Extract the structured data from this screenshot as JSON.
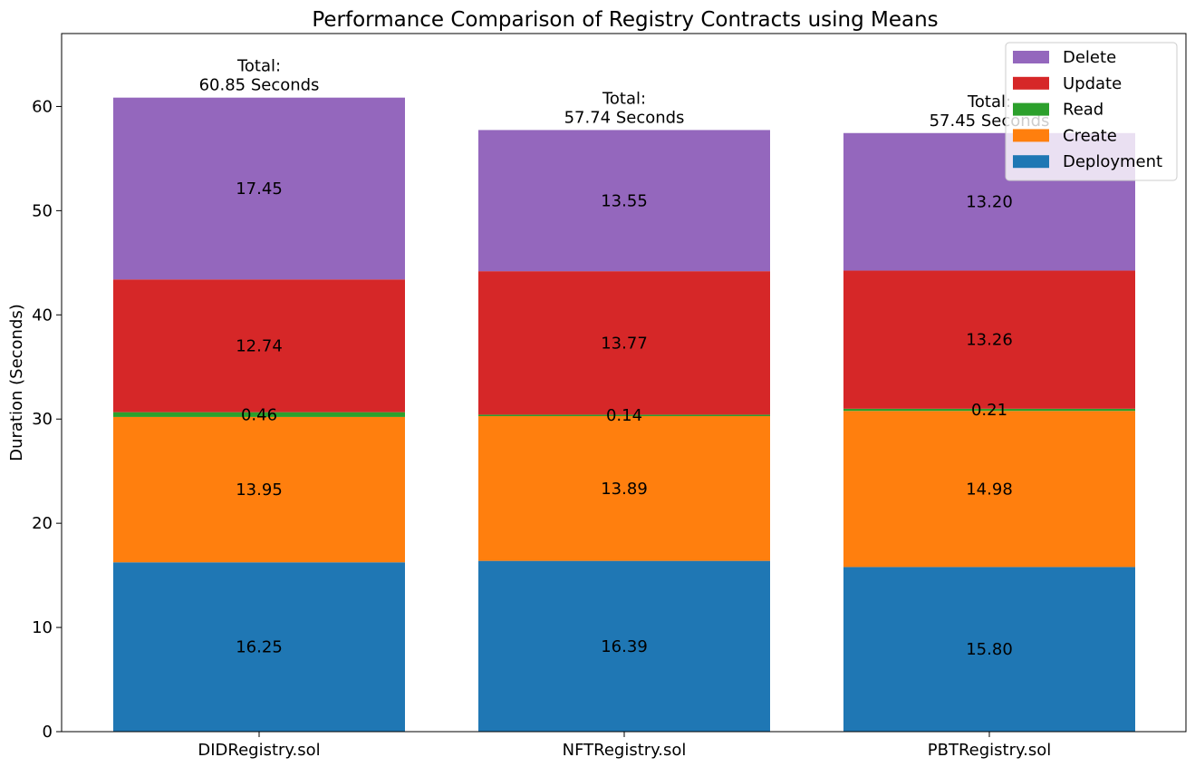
{
  "chart_data": {
    "type": "bar",
    "stacked": true,
    "title": "Performance Comparison of Registry Contracts using Means",
    "xlabel": "",
    "ylabel": "Duration (Seconds)",
    "ylim": [
      0,
      67
    ],
    "yticks": [
      0,
      10,
      20,
      30,
      40,
      50,
      60
    ],
    "grid": false,
    "legend_position": "top-right",
    "categories": [
      "DIDRegistry.sol",
      "NFTRegistry.sol",
      "PBTRegistry.sol"
    ],
    "series": [
      {
        "name": "Deployment",
        "color": "#1f77b4",
        "values": [
          16.25,
          16.39,
          15.8
        ],
        "labels": [
          "16.25",
          "16.39",
          "15.80"
        ]
      },
      {
        "name": "Create",
        "color": "#ff7f0e",
        "values": [
          13.95,
          13.89,
          14.98
        ],
        "labels": [
          "13.95",
          "13.89",
          "14.98"
        ]
      },
      {
        "name": "Read",
        "color": "#2ca02c",
        "values": [
          0.46,
          0.14,
          0.21
        ],
        "labels": [
          "0.46",
          "0.14",
          "0.21"
        ]
      },
      {
        "name": "Update",
        "color": "#d62728",
        "values": [
          12.74,
          13.77,
          13.26
        ],
        "labels": [
          "12.74",
          "13.77",
          "13.26"
        ]
      },
      {
        "name": "Delete",
        "color": "#9467bd",
        "values": [
          17.45,
          13.55,
          13.2
        ],
        "labels": [
          "17.45",
          "13.55",
          "13.20"
        ]
      }
    ],
    "totals": [
      {
        "value": 60.85,
        "line1": "Total:",
        "line2": "60.85 Seconds"
      },
      {
        "value": 57.74,
        "line1": "Total:",
        "line2": "57.74 Seconds"
      },
      {
        "value": 57.45,
        "line1": "Total:",
        "line2": "57.45 Seconds"
      }
    ],
    "legend_order": [
      "Delete",
      "Update",
      "Read",
      "Create",
      "Deployment"
    ]
  }
}
